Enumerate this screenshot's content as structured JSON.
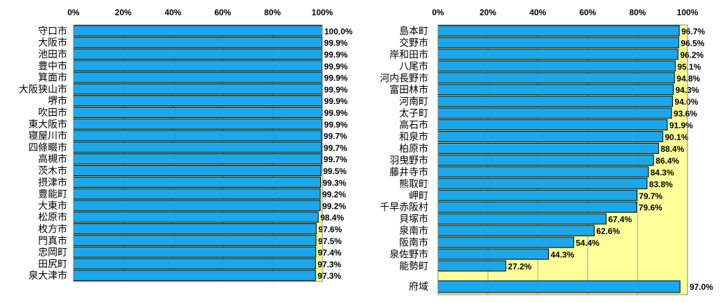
{
  "colors": {
    "bar": "#1AA7EC",
    "bar_border": "#000000",
    "plot_fill": "#FFFF99",
    "gridline": "#A0A0A0",
    "plot_border": "#808080"
  },
  "chart_data": [
    {
      "type": "bar",
      "orientation": "horizontal",
      "xlim": [
        0,
        100
      ],
      "tick_labels": [
        "0%",
        "20%",
        "40%",
        "60%",
        "80%",
        "100%"
      ],
      "grid": true,
      "categories": [
        "守口市",
        "大阪市",
        "池田市",
        "豊中市",
        "箕面市",
        "大阪狭山市",
        "堺市",
        "吹田市",
        "東大阪市",
        "寝屋川市",
        "四條畷市",
        "高槻市",
        "茨木市",
        "摂津市",
        "豊能町",
        "大東市",
        "松原市",
        "枚方市",
        "門真市",
        "忠岡町",
        "田尻町",
        "泉大津市"
      ],
      "values": [
        100.0,
        99.9,
        99.9,
        99.9,
        99.9,
        99.9,
        99.9,
        99.9,
        99.9,
        99.7,
        99.7,
        99.7,
        99.5,
        99.3,
        99.2,
        99.2,
        98.4,
        97.6,
        97.5,
        97.4,
        97.3,
        97.3
      ],
      "value_labels": [
        "100.0%",
        "99.9%",
        "99.9%",
        "99.9%",
        "99.9%",
        "99.9%",
        "99.9%",
        "99.9%",
        "99.9%",
        "99.7%",
        "99.7%",
        "99.7%",
        "99.5%",
        "99.3%",
        "99.2%",
        "99.2%",
        "98.4%",
        "97.6%",
        "97.5%",
        "97.4%",
        "97.3%",
        "97.3%"
      ]
    },
    {
      "type": "bar",
      "orientation": "horizontal",
      "xlim": [
        0,
        100
      ],
      "tick_labels": [
        "0%",
        "20%",
        "40%",
        "60%",
        "80%",
        "100%"
      ],
      "grid": true,
      "categories": [
        "島本町",
        "交野市",
        "岸和田市",
        "八尾市",
        "河内長野市",
        "富田林市",
        "河南町",
        "太子町",
        "高石市",
        "和泉市",
        "柏原市",
        "羽曳野市",
        "藤井寺市",
        "熊取町",
        "岬町",
        "千早赤阪村",
        "貝塚市",
        "泉南市",
        "阪南市",
        "泉佐野市",
        "能勢町"
      ],
      "values": [
        96.7,
        96.5,
        96.2,
        95.1,
        94.8,
        94.3,
        94.0,
        93.6,
        91.9,
        90.1,
        88.4,
        86.4,
        84.3,
        83.8,
        79.7,
        79.6,
        67.4,
        62.6,
        54.4,
        44.3,
        27.2
      ],
      "value_labels": [
        "96.7%",
        "96.5%",
        "96.2%",
        "95.1%",
        "94.8%",
        "94.3%",
        "94.0%",
        "93.6%",
        "91.9%",
        "90.1%",
        "88.4%",
        "86.4%",
        "84.3%",
        "83.8%",
        "79.7%",
        "79.6%",
        "67.4%",
        "62.6%",
        "54.4%",
        "44.3%",
        "27.2%"
      ],
      "summary": {
        "category": "府域",
        "value": 97.0,
        "value_label": "97.0%"
      }
    }
  ]
}
